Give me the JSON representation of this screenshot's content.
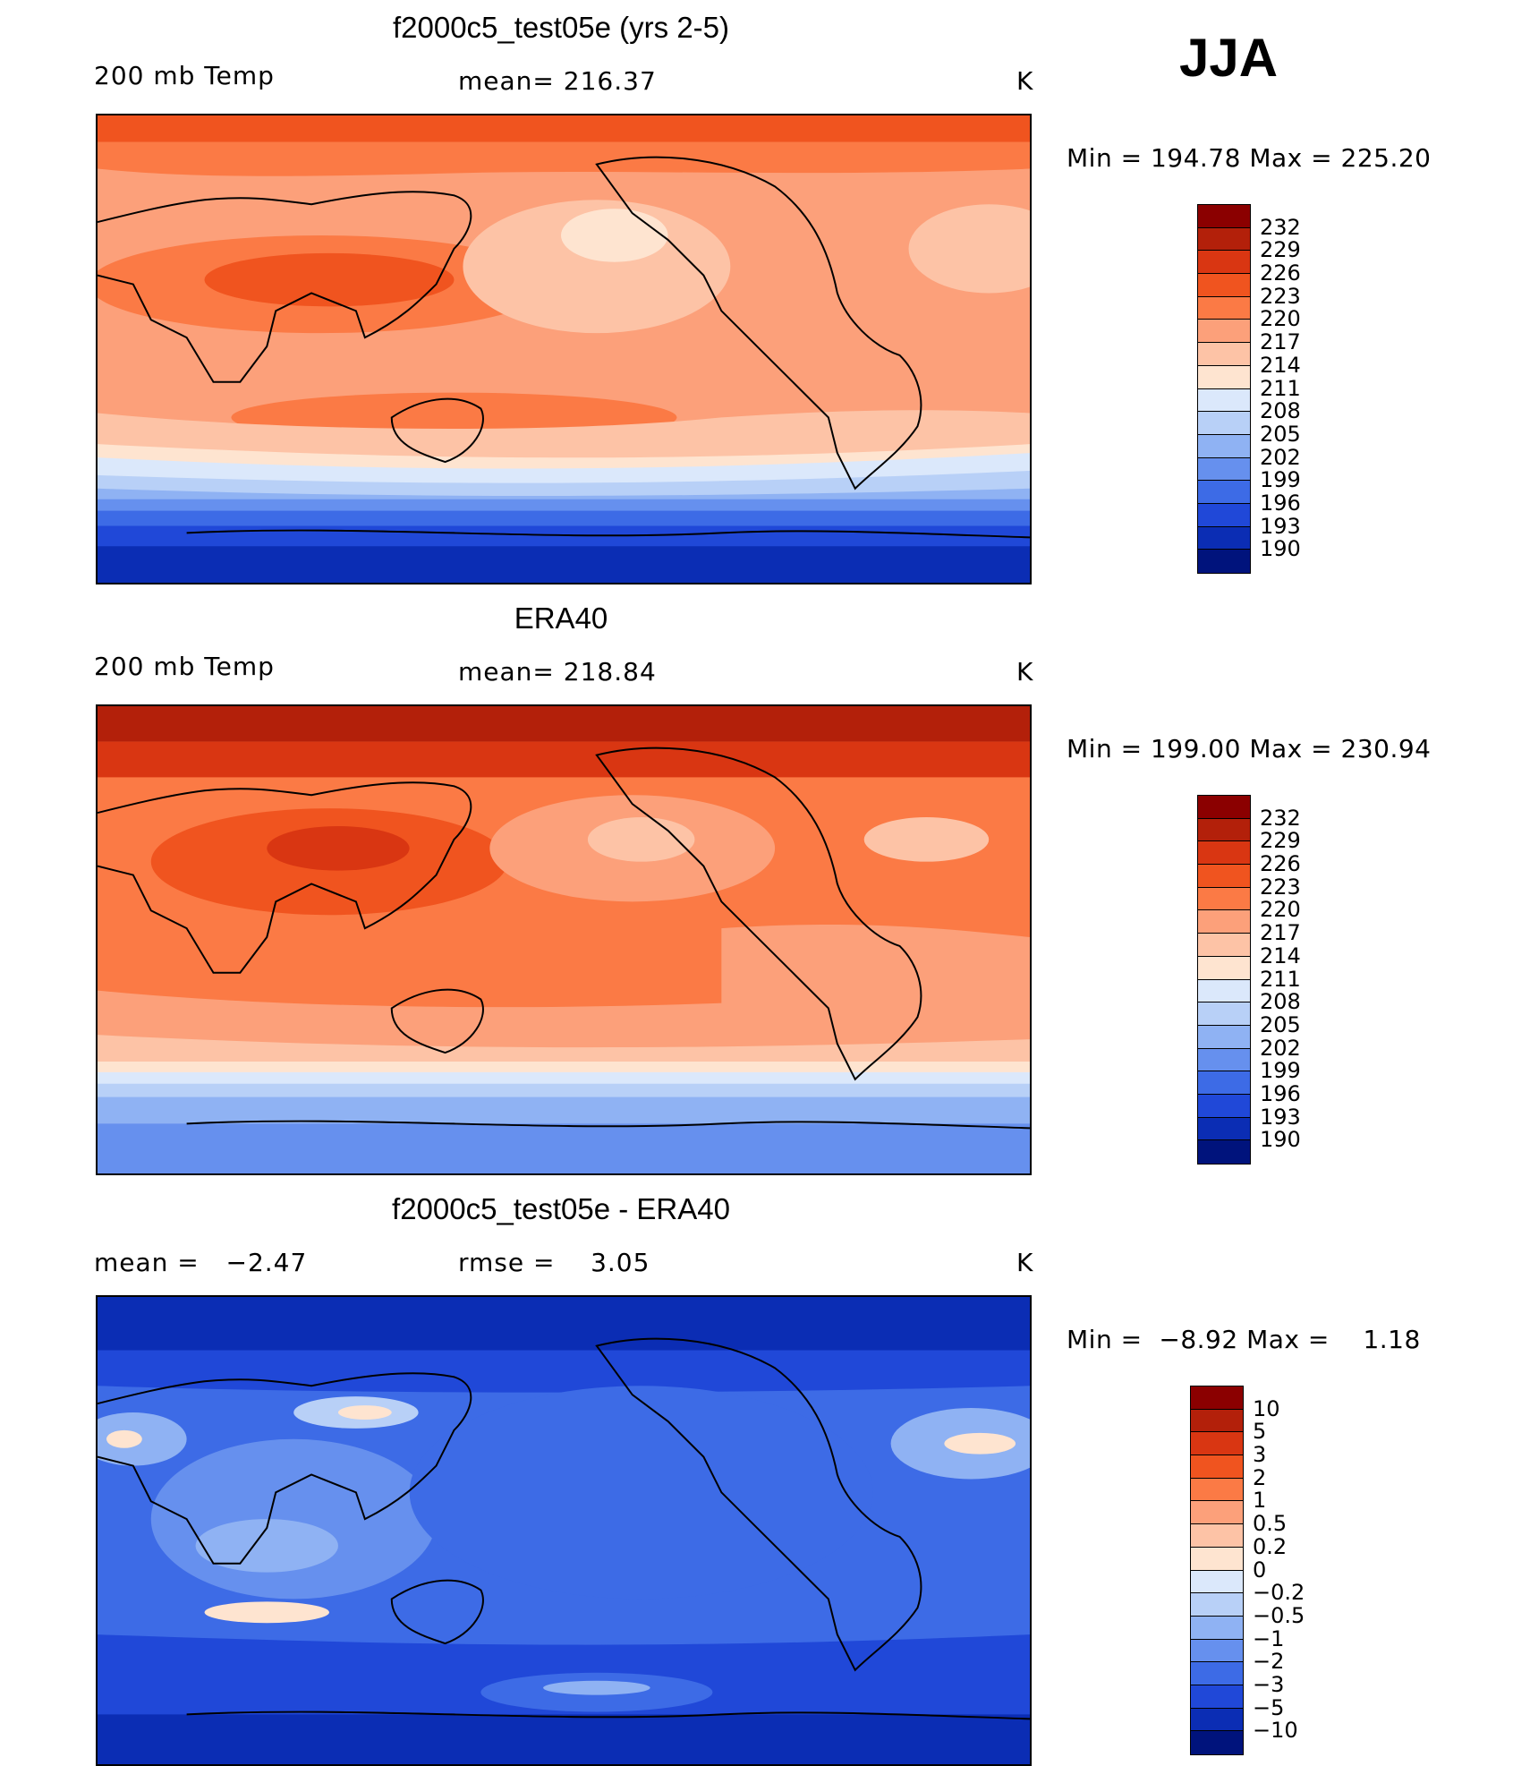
{
  "season": "JJA",
  "chart_data": [
    {
      "type": "heatmap",
      "title": "f2000c5_test05e (yrs 2-5)",
      "variable_label": "200 mb Temp",
      "mean_label": "mean=",
      "mean_value": "216.37",
      "units": "K",
      "min_label": "Min =",
      "min_value": "194.78",
      "max_label": "Max =",
      "max_value": "225.20",
      "colorbar": {
        "levels": [
          "232",
          "229",
          "226",
          "223",
          "220",
          "217",
          "214",
          "211",
          "208",
          "205",
          "202",
          "199",
          "196",
          "193",
          "190"
        ],
        "colors": [
          "#8b0000",
          "#b3200a",
          "#d93612",
          "#f0541f",
          "#fb7a45",
          "#fca07a",
          "#fdc3a6",
          "#fee4d0",
          "#dbe8fb",
          "#b8d0f7",
          "#8fb2f3",
          "#6690ee",
          "#3d6be6",
          "#2048d8",
          "#0b2db4",
          "#00137c"
        ]
      },
      "x_range": [
        -180,
        180
      ],
      "y_range": [
        -90,
        90
      ]
    },
    {
      "type": "heatmap",
      "title": "ERA40",
      "variable_label": "200 mb Temp",
      "mean_label": "mean=",
      "mean_value": "218.84",
      "units": "K",
      "min_label": "Min =",
      "min_value": "199.00",
      "max_label": "Max =",
      "max_value": "230.94",
      "colorbar": {
        "levels": [
          "232",
          "229",
          "226",
          "223",
          "220",
          "217",
          "214",
          "211",
          "208",
          "205",
          "202",
          "199",
          "196",
          "193",
          "190"
        ],
        "colors": [
          "#8b0000",
          "#b3200a",
          "#d93612",
          "#f0541f",
          "#fb7a45",
          "#fca07a",
          "#fdc3a6",
          "#fee4d0",
          "#dbe8fb",
          "#b8d0f7",
          "#8fb2f3",
          "#6690ee",
          "#3d6be6",
          "#2048d8",
          "#0b2db4",
          "#00137c"
        ]
      },
      "x_range": [
        -180,
        180
      ],
      "y_range": [
        -90,
        90
      ]
    },
    {
      "type": "heatmap",
      "title": "f2000c5_test05e - ERA40",
      "mean_label": "mean =",
      "mean_value": "−2.47",
      "rmse_label": "rmse =",
      "rmse_value": "3.05",
      "units": "K",
      "min_label": "Min =",
      "min_value": "−8.92",
      "max_label": "Max =",
      "max_value": "1.18",
      "colorbar": {
        "levels": [
          "10",
          "5",
          "3",
          "2",
          "1",
          "0.5",
          "0.2",
          "0",
          "−0.2",
          "−0.5",
          "−1",
          "−2",
          "−3",
          "−5",
          "−10"
        ],
        "colors": [
          "#8b0000",
          "#b3200a",
          "#d93612",
          "#f0541f",
          "#fb7a45",
          "#fca07a",
          "#fdc3a6",
          "#fee4d0",
          "#dbe8fb",
          "#b8d0f7",
          "#8fb2f3",
          "#6690ee",
          "#3d6be6",
          "#2048d8",
          "#0b2db4",
          "#00137c"
        ]
      },
      "x_range": [
        -180,
        180
      ],
      "y_range": [
        -90,
        90
      ]
    }
  ]
}
